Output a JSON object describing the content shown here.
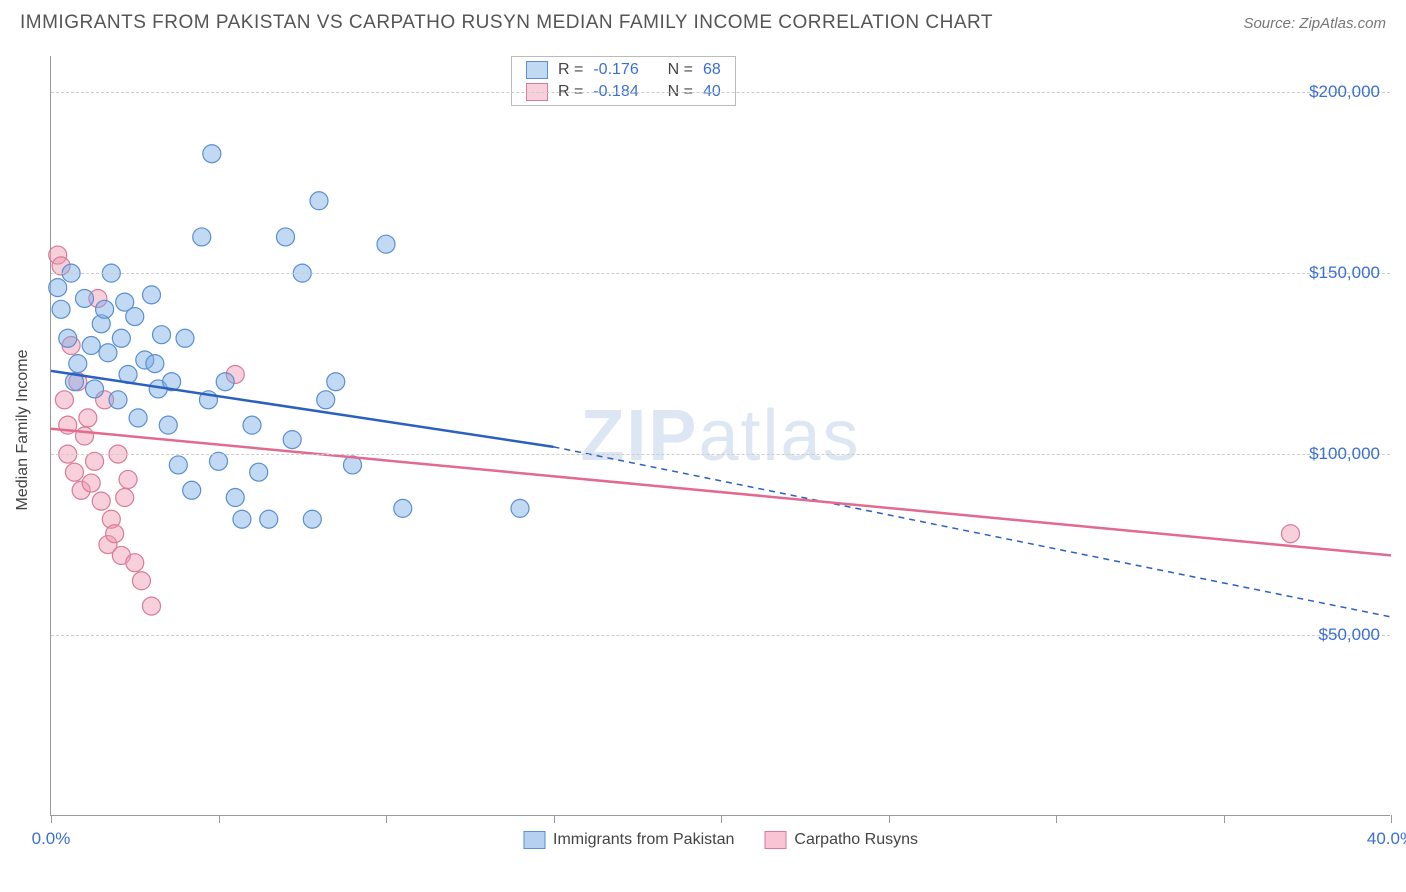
{
  "title": "IMMIGRANTS FROM PAKISTAN VS CARPATHO RUSYN MEDIAN FAMILY INCOME CORRELATION CHART",
  "source": "Source: ZipAtlas.com",
  "y_axis_label": "Median Family Income",
  "watermark": "ZIPatlas",
  "chart": {
    "type": "scatter",
    "xlim": [
      0,
      40
    ],
    "ylim": [
      0,
      210000
    ],
    "x_ticks": [
      0,
      5,
      10,
      15,
      20,
      25,
      30,
      35,
      40
    ],
    "x_tick_labels": {
      "0": "0.0%",
      "40": "40.0%"
    },
    "y_gridlines": [
      50000,
      100000,
      150000,
      200000
    ],
    "y_tick_labels": {
      "50000": "$50,000",
      "100000": "$100,000",
      "150000": "$150,000",
      "200000": "$200,000"
    },
    "grid_color": "#cccccc",
    "axis_color": "#999999",
    "background_color": "#ffffff",
    "tick_label_color": "#3b6fd4",
    "axis_label_fontsize": 16,
    "tick_label_fontsize": 17
  },
  "series": [
    {
      "name": "Immigrants from Pakistan",
      "marker_color_fill": "rgba(120,170,230,0.45)",
      "marker_color_stroke": "#5a8fd0",
      "marker_radius": 9,
      "R_label": "R =",
      "R": "-0.176",
      "N_label": "N =",
      "N": "68",
      "regression": {
        "solid": {
          "x1": 0,
          "y1": 123000,
          "x2": 15,
          "y2": 102000
        },
        "dashed": {
          "x1": 15,
          "y1": 102000,
          "x2": 40,
          "y2": 55000
        },
        "color": "#2b5fc0",
        "width": 2.5
      },
      "points": [
        [
          0.2,
          146000
        ],
        [
          0.3,
          140000
        ],
        [
          0.5,
          132000
        ],
        [
          0.6,
          150000
        ],
        [
          0.7,
          120000
        ],
        [
          0.8,
          125000
        ],
        [
          1.0,
          143000
        ],
        [
          1.2,
          130000
        ],
        [
          1.3,
          118000
        ],
        [
          1.5,
          136000
        ],
        [
          1.6,
          140000
        ],
        [
          1.7,
          128000
        ],
        [
          1.8,
          150000
        ],
        [
          2.0,
          115000
        ],
        [
          2.1,
          132000
        ],
        [
          2.2,
          142000
        ],
        [
          2.3,
          122000
        ],
        [
          2.5,
          138000
        ],
        [
          2.6,
          110000
        ],
        [
          2.8,
          126000
        ],
        [
          3.0,
          144000
        ],
        [
          3.1,
          125000
        ],
        [
          3.2,
          118000
        ],
        [
          3.3,
          133000
        ],
        [
          3.5,
          108000
        ],
        [
          3.6,
          120000
        ],
        [
          3.8,
          97000
        ],
        [
          4.0,
          132000
        ],
        [
          4.2,
          90000
        ],
        [
          4.5,
          160000
        ],
        [
          4.7,
          115000
        ],
        [
          4.8,
          183000
        ],
        [
          5.0,
          98000
        ],
        [
          5.2,
          120000
        ],
        [
          5.5,
          88000
        ],
        [
          5.7,
          82000
        ],
        [
          6.0,
          108000
        ],
        [
          6.2,
          95000
        ],
        [
          6.5,
          82000
        ],
        [
          7.0,
          160000
        ],
        [
          7.2,
          104000
        ],
        [
          7.5,
          150000
        ],
        [
          7.8,
          82000
        ],
        [
          8.0,
          170000
        ],
        [
          8.2,
          115000
        ],
        [
          8.5,
          120000
        ],
        [
          9.0,
          97000
        ],
        [
          10.0,
          158000
        ],
        [
          10.5,
          85000
        ],
        [
          14.0,
          85000
        ]
      ]
    },
    {
      "name": "Carpatho Rusyns",
      "marker_color_fill": "rgba(240,150,175,0.45)",
      "marker_color_stroke": "#d97a9a",
      "marker_radius": 9,
      "R_label": "R =",
      "R": "-0.184",
      "N_label": "N =",
      "N": "40",
      "regression": {
        "solid": {
          "x1": 0,
          "y1": 107000,
          "x2": 40,
          "y2": 72000
        },
        "dashed": null,
        "color": "#e06b8f",
        "width": 2.5
      },
      "points": [
        [
          0.2,
          155000
        ],
        [
          0.3,
          152000
        ],
        [
          0.4,
          115000
        ],
        [
          0.5,
          100000
        ],
        [
          0.5,
          108000
        ],
        [
          0.6,
          130000
        ],
        [
          0.7,
          95000
        ],
        [
          0.8,
          120000
        ],
        [
          0.9,
          90000
        ],
        [
          1.0,
          105000
        ],
        [
          1.1,
          110000
        ],
        [
          1.2,
          92000
        ],
        [
          1.3,
          98000
        ],
        [
          1.4,
          143000
        ],
        [
          1.5,
          87000
        ],
        [
          1.6,
          115000
        ],
        [
          1.7,
          75000
        ],
        [
          1.8,
          82000
        ],
        [
          1.9,
          78000
        ],
        [
          2.0,
          100000
        ],
        [
          2.1,
          72000
        ],
        [
          2.2,
          88000
        ],
        [
          2.3,
          93000
        ],
        [
          2.5,
          70000
        ],
        [
          2.7,
          65000
        ],
        [
          3.0,
          58000
        ],
        [
          5.5,
          122000
        ],
        [
          37.0,
          78000
        ]
      ]
    }
  ],
  "bottom_legend": [
    {
      "label": "Immigrants from Pakistan",
      "fill": "rgba(120,170,230,0.55)",
      "stroke": "#5a8fd0"
    },
    {
      "label": "Carpatho Rusyns",
      "fill": "rgba(240,150,175,0.55)",
      "stroke": "#d97a9a"
    }
  ]
}
